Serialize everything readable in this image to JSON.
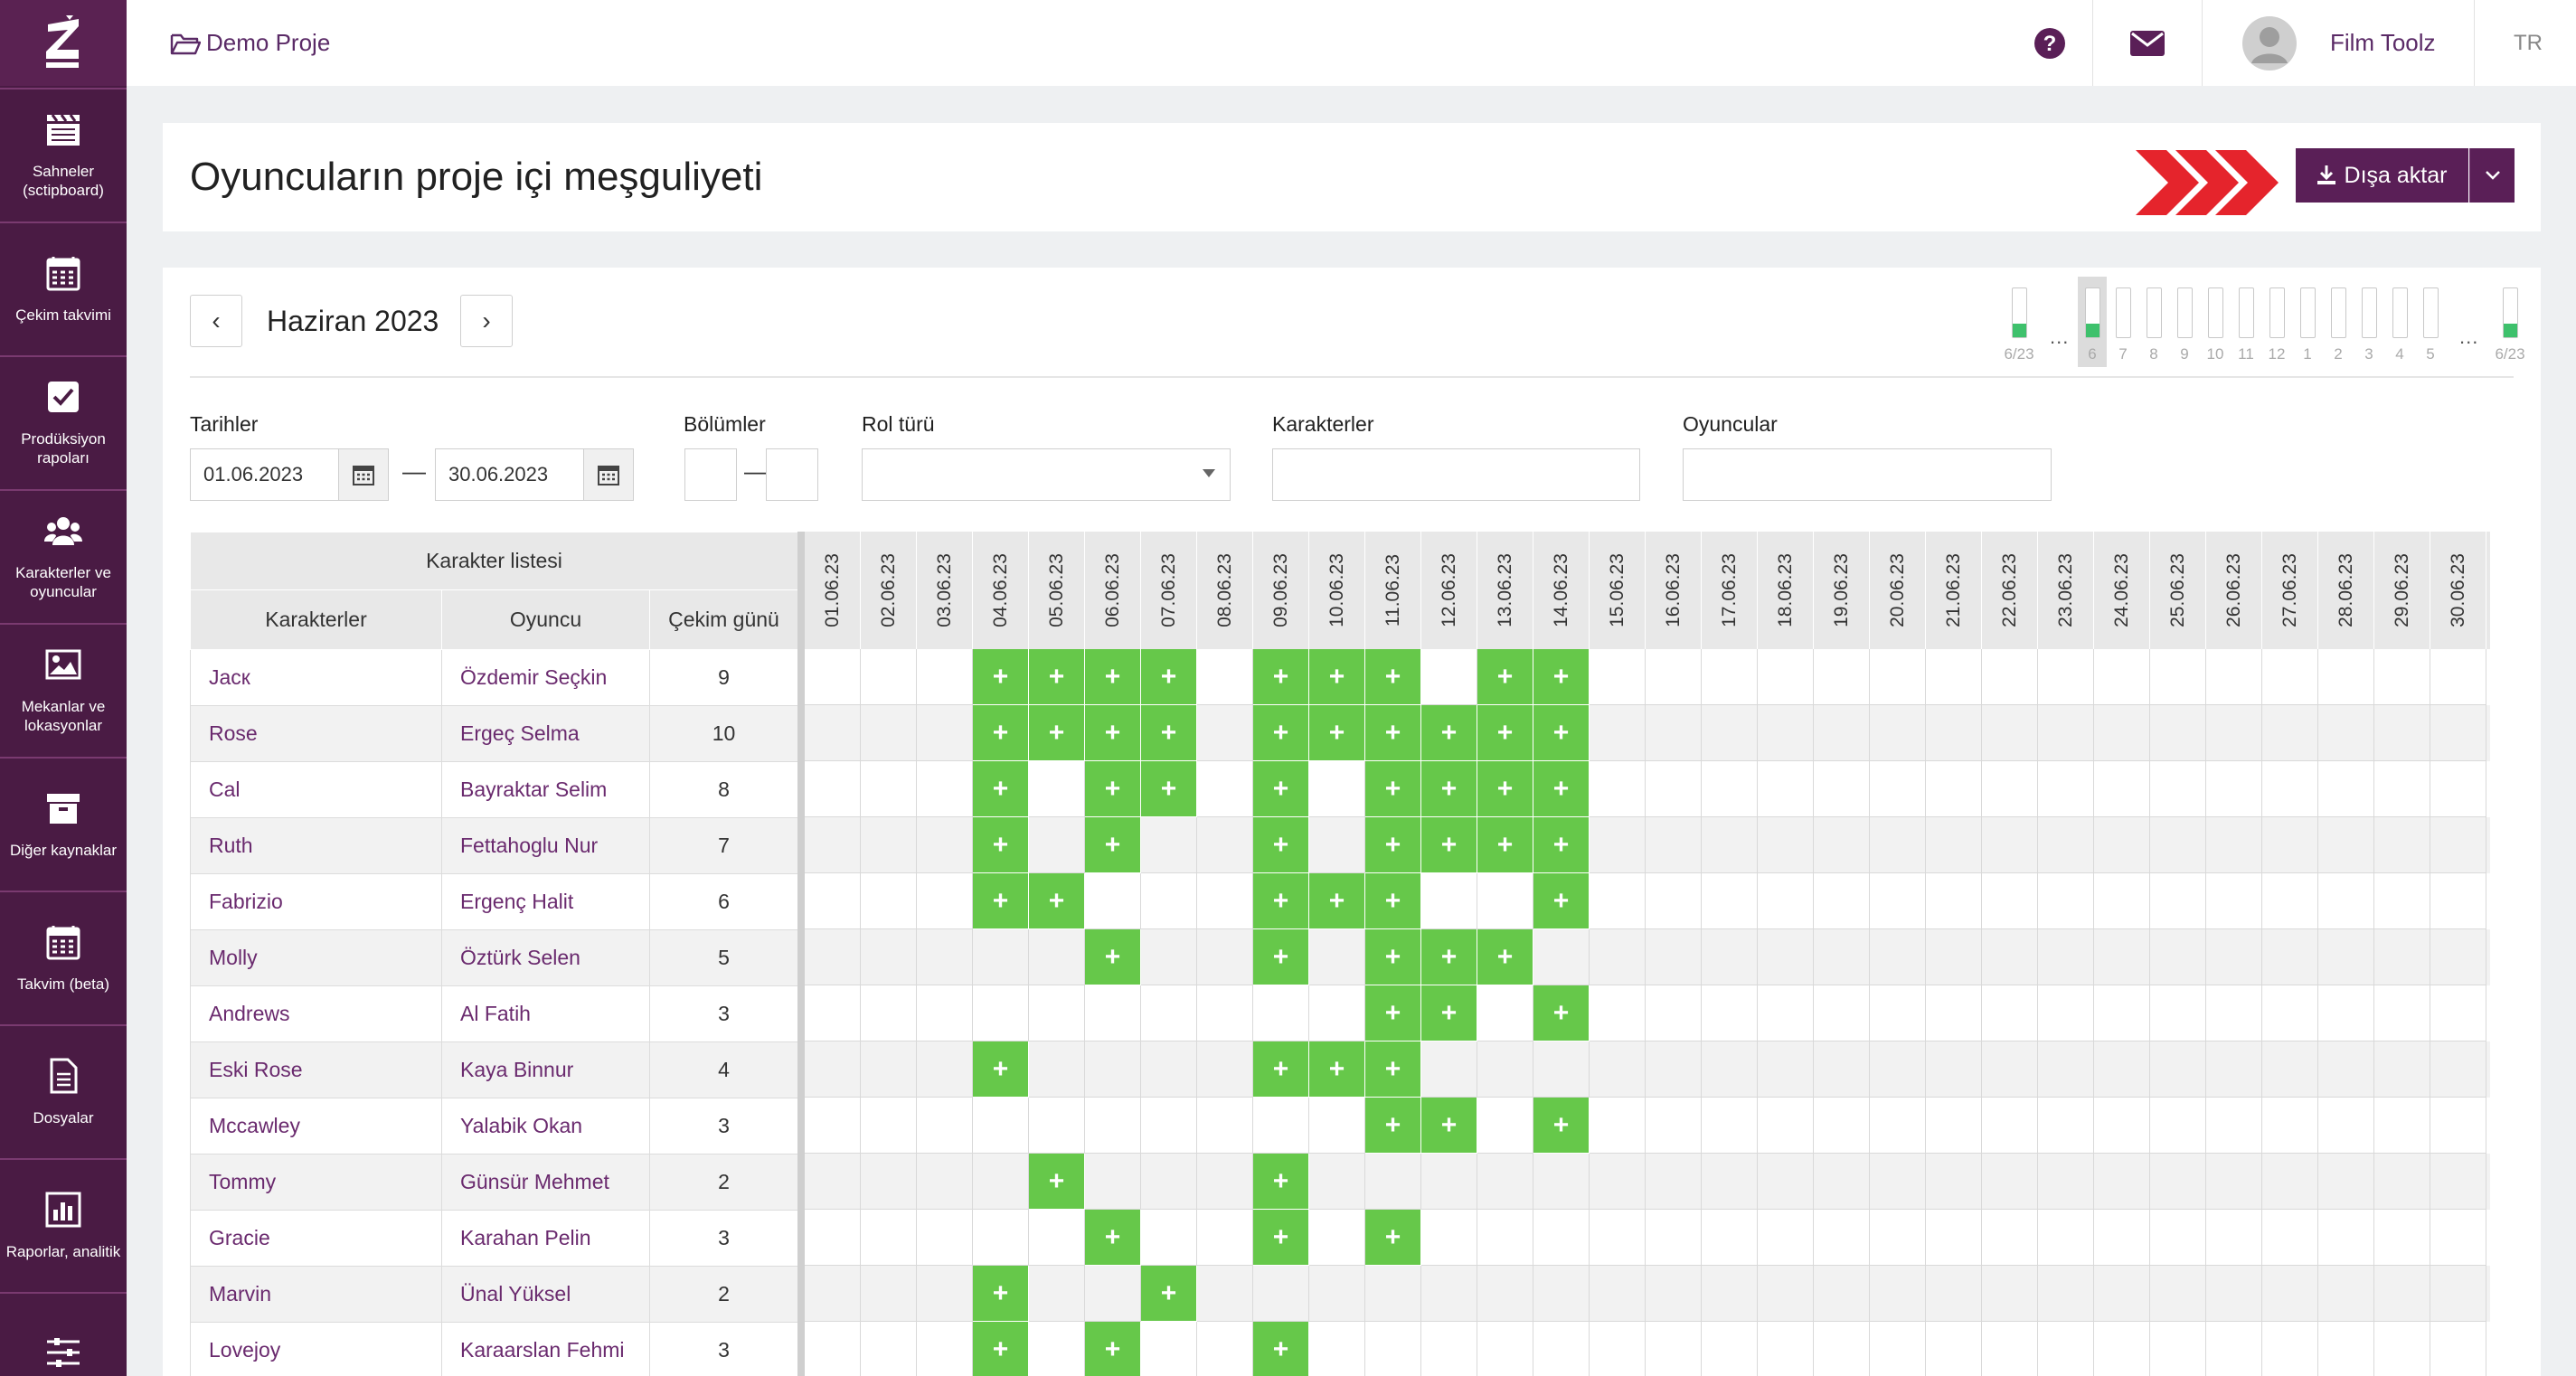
{
  "sidebar": {
    "items": [
      {
        "label": "Sahneler (sctipboard)",
        "icon": "clapperboard-icon"
      },
      {
        "label": "Çekim takvimi",
        "icon": "calendar-icon"
      },
      {
        "label": "Prodüksiyon rapoları",
        "icon": "checkbox-icon"
      },
      {
        "label": "Karakterler ve oyuncular",
        "icon": "users-icon"
      },
      {
        "label": "Mekanlar ve lokasyonlar",
        "icon": "image-icon"
      },
      {
        "label": "Diğer kaynaklar",
        "icon": "archive-icon"
      },
      {
        "label": "Takvim (beta)",
        "icon": "calendar-icon"
      },
      {
        "label": "Dosyalar",
        "icon": "file-icon"
      },
      {
        "label": "Raporlar, analitik",
        "icon": "bar-chart-icon"
      },
      {
        "label": "",
        "icon": "sliders-icon"
      }
    ]
  },
  "topbar": {
    "project": "Demo Proje",
    "user": "Film Toolz",
    "lang": "TR"
  },
  "page": {
    "title": "Oyuncuların proje içi meşguliyeti",
    "export_label": "Dışa aktar"
  },
  "calendar": {
    "month": "Haziran 2023",
    "mini": {
      "first": "6/23",
      "days": [
        "6",
        "7",
        "8",
        "9",
        "10",
        "11",
        "12",
        "1",
        "2",
        "3",
        "4",
        "5"
      ],
      "last": "6/23",
      "dots": "..."
    }
  },
  "filters": {
    "dates_label": "Tarihler",
    "date_from": "01.06.2023",
    "date_to": "30.06.2023",
    "episodes_label": "Bölümler",
    "role_type_label": "Rol türü",
    "characters_label": "Karakterler",
    "actors_label": "Oyuncular",
    "dash": "—"
  },
  "table": {
    "group_header": "Karakter listesi",
    "col_character": "Karakterler",
    "col_actor": "Oyuncu",
    "col_days": "Çekim günü",
    "dates": [
      "01.06.23",
      "02.06.23",
      "03.06.23",
      "04.06.23",
      "05.06.23",
      "06.06.23",
      "07.06.23",
      "08.06.23",
      "09.06.23",
      "10.06.23",
      "11.06.23",
      "12.06.23",
      "13.06.23",
      "14.06.23",
      "15.06.23",
      "16.06.23",
      "17.06.23",
      "18.06.23",
      "19.06.23",
      "20.06.23",
      "21.06.23",
      "22.06.23",
      "23.06.23",
      "24.06.23",
      "25.06.23",
      "26.06.23",
      "27.06.23",
      "28.06.23",
      "29.06.23",
      "30.06.23"
    ],
    "rows": [
      {
        "character": "Jacк",
        "actor": "Özdemir Seçkin",
        "days": "9",
        "shoot": [
          4,
          5,
          6,
          7,
          9,
          10,
          11,
          13,
          14
        ]
      },
      {
        "character": "Rose",
        "actor": "Ergeç Selma",
        "days": "10",
        "shoot": [
          4,
          5,
          6,
          7,
          9,
          10,
          11,
          12,
          13,
          14
        ]
      },
      {
        "character": "Cal",
        "actor": "Bayraktar Selim",
        "days": "8",
        "shoot": [
          4,
          6,
          7,
          9,
          11,
          12,
          13,
          14
        ]
      },
      {
        "character": "Ruth",
        "actor": "Fettahoglu Nur",
        "days": "7",
        "shoot": [
          4,
          6,
          9,
          11,
          12,
          13,
          14
        ]
      },
      {
        "character": "Fabrizio",
        "actor": "Ergenç Halit",
        "days": "6",
        "shoot": [
          4,
          5,
          9,
          10,
          11,
          14
        ]
      },
      {
        "character": "Molly",
        "actor": "Öztürk Selen",
        "days": "5",
        "shoot": [
          6,
          9,
          11,
          12,
          13
        ]
      },
      {
        "character": "Andrews",
        "actor": "Al Fatih",
        "days": "3",
        "shoot": [
          11,
          12,
          14
        ]
      },
      {
        "character": "Eski Rose",
        "actor": "Kaya Binnur",
        "days": "4",
        "shoot": [
          4,
          9,
          10,
          11
        ]
      },
      {
        "character": "Mccawley",
        "actor": "Yalabik Okan",
        "days": "3",
        "shoot": [
          11,
          12,
          14
        ]
      },
      {
        "character": "Tommy",
        "actor": "Günsür Mehmet",
        "days": "2",
        "shoot": [
          5,
          9
        ]
      },
      {
        "character": "Gracie",
        "actor": "Karahan Pelin",
        "days": "3",
        "shoot": [
          6,
          9,
          11
        ]
      },
      {
        "character": "Marvin",
        "actor": "Ünal Yüksel",
        "days": "2",
        "shoot": [
          4,
          7
        ]
      },
      {
        "character": "Lovejoy",
        "actor": "Karaarslan Fehmi",
        "days": "3",
        "shoot": [
          4,
          6,
          9
        ]
      }
    ]
  },
  "colors": {
    "sidebar": "#4a1b44",
    "accent": "#5a1f57",
    "link": "#6a2a6e",
    "shoot_cell": "#66c84a",
    "chevron": "#e5242c"
  }
}
